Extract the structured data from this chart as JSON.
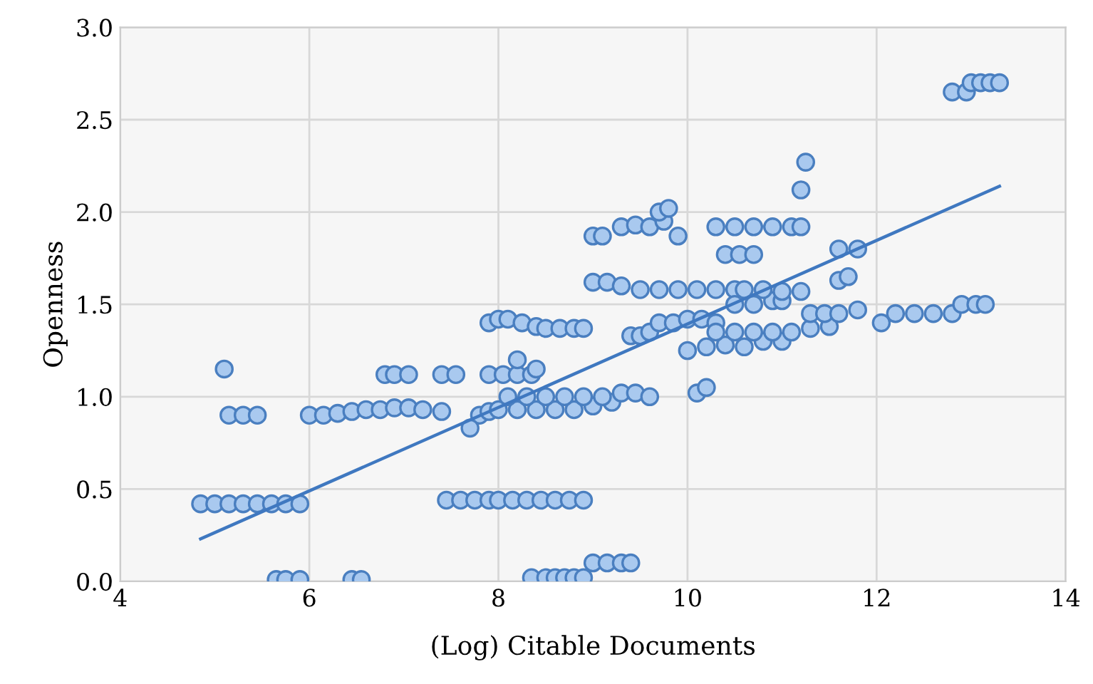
{
  "chart_data": {
    "type": "scatter",
    "xlabel": "(Log) Citable Documents",
    "ylabel": "Openness",
    "xlim": [
      4,
      14
    ],
    "xticks": [
      4,
      6,
      8,
      10,
      12,
      14
    ],
    "ylim": [
      0,
      3
    ],
    "yticks": [
      {
        "value": 0,
        "label": "0.0"
      },
      {
        "value": 0.5,
        "label": "0.5"
      },
      {
        "value": 1,
        "label": "1.0"
      },
      {
        "value": 1.5,
        "label": "1.5"
      },
      {
        "value": 2,
        "label": "2.0"
      },
      {
        "value": 2.5,
        "label": "2.5"
      },
      {
        "value": 3,
        "label": "3.0"
      }
    ],
    "grid": true,
    "series": [
      {
        "type": "scatter",
        "marker": "circle",
        "color": "#a9c9ef",
        "x": [
          4.85,
          5.0,
          5.15,
          5.3,
          5.45,
          5.6,
          5.75,
          5.9,
          7.45,
          7.6,
          7.75,
          7.9,
          8.0,
          8.15,
          8.3,
          8.45,
          8.6,
          8.75,
          8.9,
          5.65,
          5.75,
          5.9,
          6.45,
          6.55,
          8.35,
          8.5,
          8.6,
          8.7,
          8.8,
          8.9,
          9.0,
          9.15,
          9.3,
          9.4,
          5.15,
          5.3,
          5.45,
          6.0,
          6.15,
          6.3,
          6.45,
          6.6,
          6.75,
          6.9,
          7.05,
          7.2,
          7.4,
          7.8,
          7.9,
          8.0,
          8.2,
          8.4,
          8.6,
          8.8,
          9.0,
          9.2,
          5.1,
          6.8,
          6.9,
          7.05,
          7.4,
          7.55,
          7.9,
          8.05,
          8.2,
          8.35,
          8.2,
          8.4,
          7.7,
          8.1,
          8.3,
          8.5,
          8.7,
          8.9,
          7.9,
          8.0,
          8.1,
          8.25,
          8.4,
          8.5,
          8.65,
          8.8,
          8.9,
          9.0,
          9.15,
          9.3,
          9.5,
          9.7,
          9.9,
          10.1,
          10.3,
          10.5,
          9.0,
          9.1,
          9.3,
          9.45,
          9.6,
          9.75,
          9.9,
          9.7,
          9.8,
          10.3,
          10.5,
          10.7,
          10.9,
          11.1,
          11.2,
          10.4,
          10.55,
          10.7,
          9.4,
          9.5,
          9.6,
          9.7,
          9.85,
          10.0,
          10.15,
          10.3,
          10.0,
          10.2,
          10.4,
          10.6,
          10.8,
          11.0,
          9.1,
          9.3,
          9.45,
          9.6,
          10.1,
          10.2,
          10.3,
          10.5,
          10.7,
          10.9,
          11.1,
          11.3,
          11.5,
          10.5,
          10.7,
          10.9,
          11.0,
          10.6,
          10.8,
          11.0,
          11.2,
          11.25,
          11.2,
          11.6,
          11.8,
          11.6,
          11.7,
          11.3,
          11.45,
          11.6,
          11.8,
          12.05,
          12.2,
          12.4,
          12.6,
          12.8,
          12.9,
          13.05,
          13.15,
          12.8,
          12.95,
          13.0,
          13.1,
          13.2,
          13.3
        ],
        "values": [
          0.42,
          0.42,
          0.42,
          0.42,
          0.42,
          0.42,
          0.42,
          0.42,
          0.44,
          0.44,
          0.44,
          0.44,
          0.44,
          0.44,
          0.44,
          0.44,
          0.44,
          0.44,
          0.44,
          0.01,
          0.01,
          0.01,
          0.01,
          0.01,
          0.02,
          0.02,
          0.02,
          0.02,
          0.02,
          0.02,
          0.1,
          0.1,
          0.1,
          0.1,
          0.9,
          0.9,
          0.9,
          0.9,
          0.9,
          0.91,
          0.92,
          0.93,
          0.93,
          0.94,
          0.94,
          0.93,
          0.92,
          0.9,
          0.92,
          0.93,
          0.93,
          0.93,
          0.93,
          0.93,
          0.95,
          0.97,
          1.15,
          1.12,
          1.12,
          1.12,
          1.12,
          1.12,
          1.12,
          1.12,
          1.12,
          1.12,
          1.2,
          1.15,
          0.83,
          1.0,
          1.0,
          1.0,
          1.0,
          1.0,
          1.4,
          1.42,
          1.42,
          1.4,
          1.38,
          1.37,
          1.37,
          1.37,
          1.37,
          1.62,
          1.62,
          1.6,
          1.58,
          1.58,
          1.58,
          1.58,
          1.58,
          1.58,
          1.87,
          1.87,
          1.92,
          1.93,
          1.92,
          1.95,
          1.87,
          2.0,
          2.02,
          1.92,
          1.92,
          1.92,
          1.92,
          1.92,
          1.92,
          1.77,
          1.77,
          1.77,
          1.33,
          1.33,
          1.35,
          1.4,
          1.4,
          1.42,
          1.42,
          1.4,
          1.25,
          1.27,
          1.28,
          1.27,
          1.3,
          1.3,
          1.0,
          1.02,
          1.02,
          1.0,
          1.02,
          1.05,
          1.35,
          1.35,
          1.35,
          1.35,
          1.35,
          1.37,
          1.38,
          1.5,
          1.5,
          1.52,
          1.52,
          1.58,
          1.58,
          1.57,
          1.57,
          2.27,
          2.12,
          1.8,
          1.8,
          1.63,
          1.65,
          1.45,
          1.45,
          1.45,
          1.47,
          1.4,
          1.45,
          1.45,
          1.45,
          1.45,
          1.5,
          1.5,
          1.5,
          2.65,
          2.65,
          2.7,
          2.7,
          2.7,
          2.7
        ]
      },
      {
        "type": "line",
        "color": "#3f78c0",
        "x": [
          4.85,
          13.3
        ],
        "values": [
          0.23,
          2.14
        ]
      }
    ]
  }
}
